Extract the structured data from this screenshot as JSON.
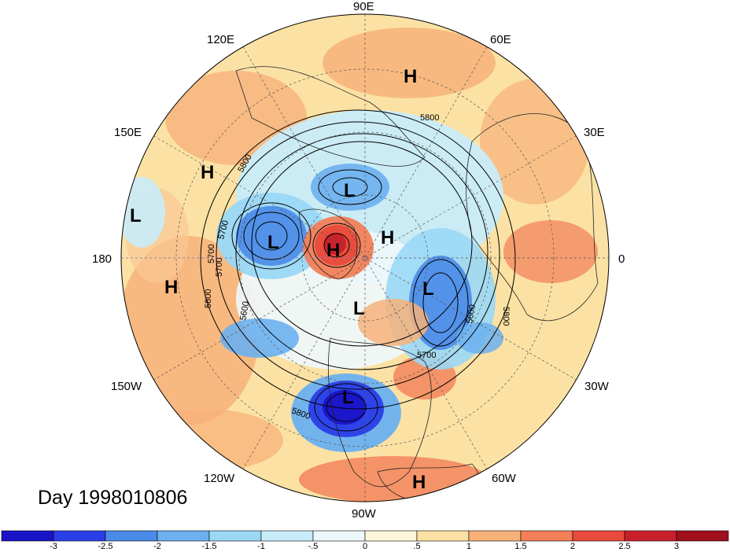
{
  "title": "Day 1998010806",
  "longitude_labels": {
    "top": "90E",
    "upper_left": "120E",
    "upper_right": "60E",
    "mid_left_upper": "150E",
    "mid_right_upper": "30E",
    "left": "180",
    "right": "0",
    "mid_left_lower": "150W",
    "mid_right_lower": "30W",
    "lower_left": "120W",
    "lower_right": "60W",
    "bottom": "90W"
  },
  "pressure_centers": [
    {
      "type": "H",
      "label": "H"
    },
    {
      "type": "H",
      "label": "H"
    },
    {
      "type": "L",
      "label": "L"
    },
    {
      "type": "L",
      "label": "L"
    },
    {
      "type": "L",
      "label": "L"
    },
    {
      "type": "H",
      "label": "H"
    },
    {
      "type": "H",
      "label": "H"
    },
    {
      "type": "H",
      "label": "H"
    },
    {
      "type": "L",
      "label": "L"
    },
    {
      "type": "L",
      "label": "L"
    },
    {
      "type": "L",
      "label": "L"
    },
    {
      "type": "H",
      "label": "H"
    }
  ],
  "contour_labels": [
    "5800",
    "5800",
    "5700",
    "5700",
    "5700",
    "5800",
    "5600",
    "5600",
    "5700",
    "5800",
    "5800",
    "5600"
  ],
  "colorbar": {
    "tick_labels": [
      "-3",
      "-2.5",
      "-2",
      "-1.5",
      "-1",
      "-.5",
      "0",
      ".5",
      "1",
      "1.5",
      "2",
      "2.5",
      "3"
    ],
    "colors": [
      "#1a14c8",
      "#2a3ee8",
      "#4a8ae8",
      "#6cb0f0",
      "#9ad8f6",
      "#c8ecfa",
      "#eef8fc",
      "#fdf6d8",
      "#fbe2a4",
      "#f7b27a",
      "#f27f58",
      "#e84a3c",
      "#c8202a",
      "#a0101c"
    ]
  }
}
